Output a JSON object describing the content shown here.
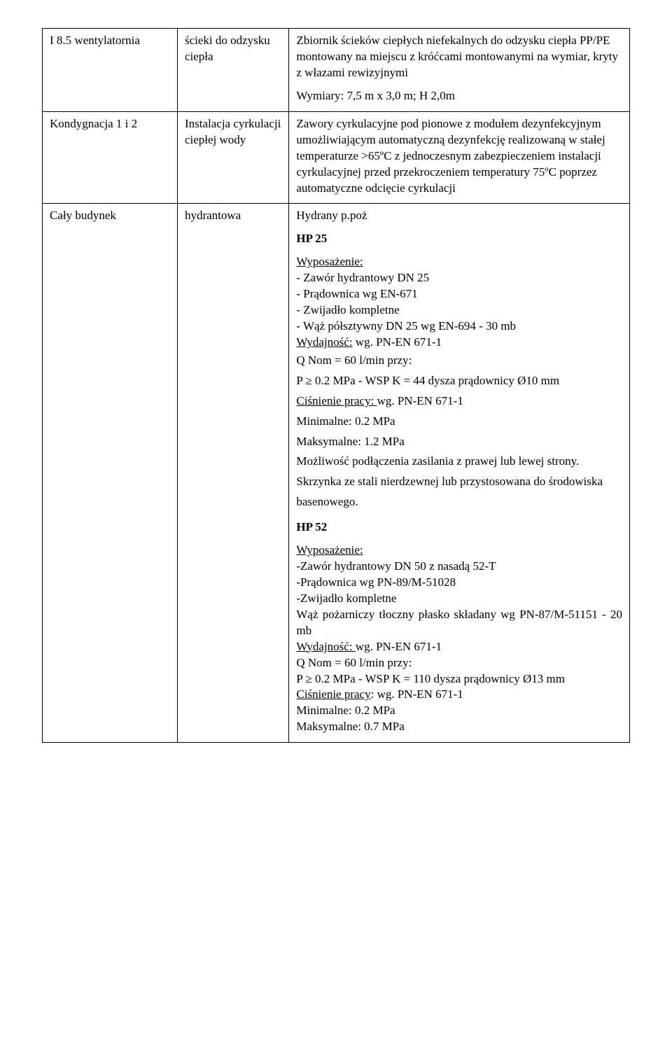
{
  "rows": [
    {
      "c1": "I 8.5 wentylatornia",
      "c2": "ścieki do odzysku ciepła",
      "c3_p1": "Zbiornik ścieków ciepłych niefekalnych do odzysku ciepła  PP/PE montowany na miejscu z króćcami montowanymi na wymiar, kryty z włazami rewizyjnymi",
      "c3_p2": "Wymiary:  7,5 m x 3,0 m; H 2,0m"
    },
    {
      "c1": "Kondygnacja 1 i 2",
      "c2": "Instalacja cyrkulacji ciepłej wody",
      "c3": "Zawory cyrkulacyjne pod pionowe  z modułem dezynfekcyjnym umożliwiającym automatyczną dezynfekcję realizowaną w stałej temperaturze >65ºC z jednoczesnym zabezpieczeniem instalacji cyrkulacyjnej przed przekroczeniem  temperatury 75ºC poprzez automatyczne odcięcie cyrkulacji"
    },
    {
      "c1": "Cały budynek",
      "c2": "hydrantowa",
      "c3_intro": "Hydrany p.poż",
      "hp25": {
        "title": "HP 25",
        "equip_label": "Wyposażenie:",
        "equip_lines": [
          "- Zawór hydrantowy DN 25",
          "- Prądownica wg EN-671",
          "- Zwijadło kompletne",
          "- Wąż półsztywny DN 25 wg EN-694 - 30 mb"
        ],
        "wydaj_label": "Wydajność:",
        "wydaj_val": " wg. PN-EN 671-1",
        "qnom": "Q Nom = 60 l/min przy:",
        "p_line": "P ≥ 0.2 MPa - WSP K = 44 dysza prądownicy Ø10 mm",
        "cisn_label": "Ciśnienie pracy: ",
        "cisn_val": " wg. PN-EN 671-1",
        "min": "Minimalne: 0.2 MPa",
        "max": "Maksymalne: 1.2 MPa",
        "note": "Możliwość podłączenia zasilania z prawej lub lewej strony. Skrzynka ze stali nierdzewnej lub przystosowana do środowiska basenowego."
      },
      "hp52": {
        "title": "HP 52",
        "equip_label": "Wyposażenie:",
        "equip_lines": [
          "-Zawór hydrantowy DN 50 z nasadą 52-T",
          "-Prądownica wg PN-89/M-51028",
          "-Zwijadło kompletne",
          "Wąż pożarniczy tłoczny płasko składany wg PN-87/M-51151 - 20 mb"
        ],
        "wydaj_label": "Wydajność: ",
        "wydaj_val": " wg. PN-EN 671-1",
        "qnom": "Q Nom = 60 l/min przy:",
        "p_line": "P ≥ 0.2 MPa - WSP K = 110 dysza prądownicy Ø13 mm",
        "cisn_label": "Ciśnienie pracy",
        "cisn_val": ": wg. PN-EN 671-1",
        "min": "Minimalne: 0.2 MPa",
        "max": "Maksymalne: 0.7 MPa"
      }
    }
  ]
}
